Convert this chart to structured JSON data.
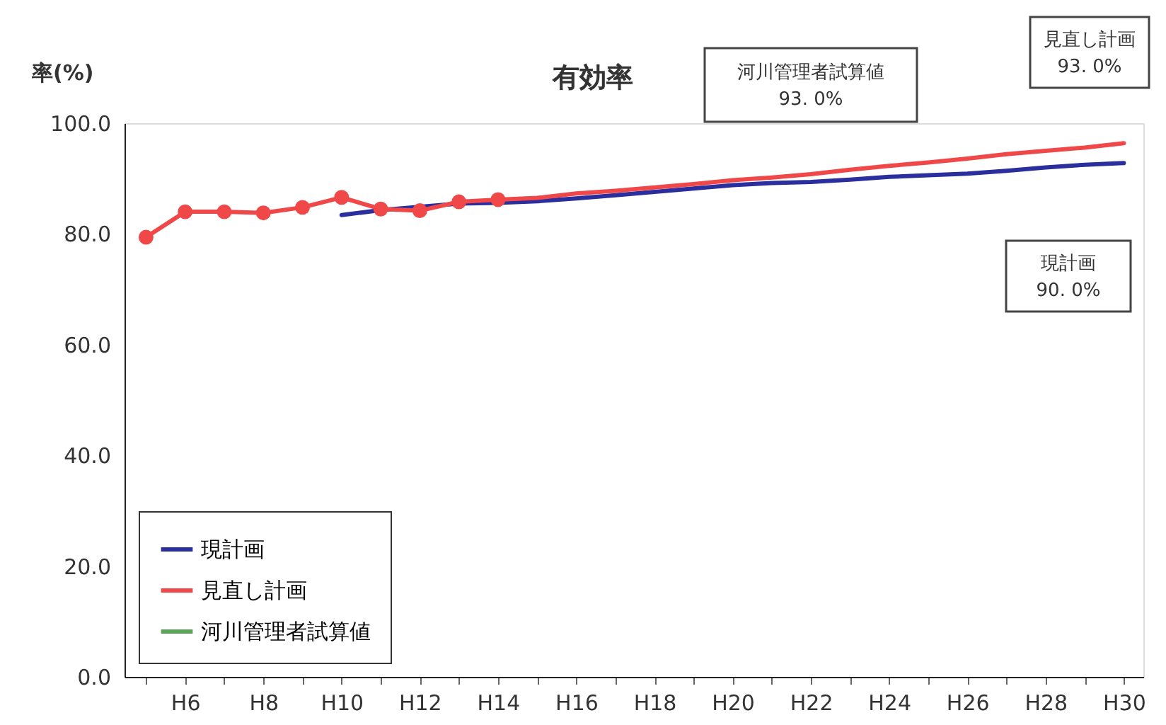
{
  "chart_data": {
    "type": "line",
    "title": "有効率",
    "ylabel": "率(%)",
    "categories": [
      null,
      "H6",
      null,
      "H8",
      null,
      "H10",
      null,
      "H12",
      null,
      "H14",
      null,
      "H16",
      null,
      "H18",
      null,
      "H20",
      null,
      "H22",
      null,
      "H24",
      null,
      "H26",
      null,
      "H28",
      null,
      "H30"
    ],
    "ylim": [
      0,
      100
    ],
    "yticks": [
      {
        "value": 0,
        "label": "0.0"
      },
      {
        "value": 20,
        "label": "20.0"
      },
      {
        "value": 40,
        "label": "40.0"
      },
      {
        "value": 60,
        "label": "60.0"
      },
      {
        "value": 80,
        "label": "80.0"
      },
      {
        "value": 100,
        "label": "100.0"
      }
    ],
    "grid": false,
    "legend": "bottom left",
    "line_style": "solid",
    "series": [
      {
        "name": "現計画",
        "color": "#2b2f9e",
        "values": [
          null,
          null,
          null,
          null,
          null,
          83.4,
          84.3,
          null,
          85.5,
          85.6,
          85.9,
          86.4,
          87.0,
          87.6,
          88.2,
          88.8,
          89.2,
          89.4,
          89.8,
          90.3,
          90.6,
          90.9,
          91.4,
          92.0,
          92.5,
          92.8
        ]
      },
      {
        "name": "見直し計画",
        "color": "#f04848",
        "values": [
          79.4,
          84.0,
          84.0,
          83.8,
          84.8,
          86.6,
          84.5,
          84.2,
          85.8,
          86.2,
          86.5,
          87.3,
          87.8,
          88.4,
          89.0,
          89.7,
          90.2,
          90.8,
          91.6,
          92.3,
          92.9,
          93.6,
          94.4,
          95.0,
          95.6,
          96.4
        ]
      },
      {
        "name": "河川管理者試算値",
        "color": "#5aa55a",
        "values": [
          null,
          null,
          null,
          null,
          null,
          null,
          null,
          null,
          null,
          null,
          null,
          null,
          null,
          null,
          null,
          null,
          null,
          null,
          null,
          null,
          null,
          null,
          null,
          null,
          null,
          null
        ]
      },
      {
        "type": "scatter",
        "marker": "circle",
        "color": "#f04848",
        "values": [
          79.4,
          84.0,
          84.0,
          83.8,
          84.8,
          86.6,
          84.5,
          84.2,
          85.8,
          86.2,
          null,
          null,
          null,
          null,
          null,
          null,
          null,
          null,
          null,
          null,
          null,
          null,
          null,
          null,
          null,
          null
        ]
      }
    ],
    "annotations": [
      "河川管理者試算値\n93. 0%",
      "見直し計画\n93. 0%",
      "現計画\n90. 0%"
    ]
  }
}
